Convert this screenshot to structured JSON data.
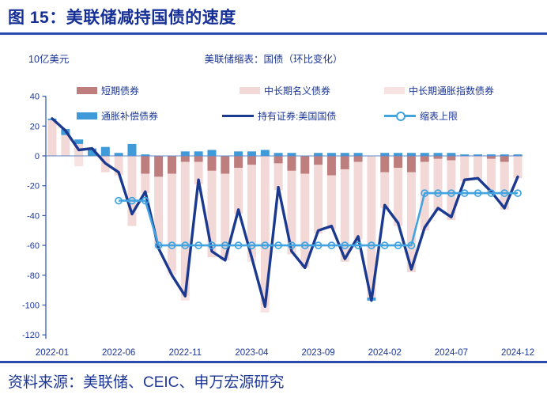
{
  "header": {
    "title": "图 15：美联储减持国债的速度"
  },
  "footer": {
    "source": "资料来源：美联储、CEIC、申万宏源研究"
  },
  "chart": {
    "unit_label": "10亿美元",
    "title": "美联储缩表：国债（环比变化）",
    "colors": {
      "short_term": "#bf7e7e",
      "nominal": "#f2d9d7",
      "inflation_indexed": "#f7e4e2",
      "inflation_comp": "#3e9ad8",
      "holdings_line": "#1b3a8f",
      "cap_line": "#41a3e0",
      "axis_text": "#1d3796",
      "zero_line": "#6189c6",
      "axis_line": "#3a5fb0"
    },
    "legend": {
      "items": [
        {
          "key": "short_term",
          "swatch": "bar",
          "label": "短期债券"
        },
        {
          "key": "nominal",
          "swatch": "bar",
          "label": "中长期名义债券"
        },
        {
          "key": "inflation_indexed",
          "swatch": "bar",
          "label": "中长期通胀指数债券"
        },
        {
          "key": "inflation_comp",
          "swatch": "bar",
          "label": "通胀补偿债券"
        },
        {
          "key": "holdings_line",
          "swatch": "line",
          "label": "持有证券:美国国债"
        },
        {
          "key": "cap_line",
          "swatch": "line-marker",
          "label": "缩表上限"
        }
      ]
    }
  },
  "chart_data": {
    "type": "bar+line",
    "title": "美联储缩表：国债（环比变化）",
    "unit": "10亿美元",
    "categories": [
      "2022-01",
      "2022-02",
      "2022-03",
      "2022-04",
      "2022-05",
      "2022-06",
      "2022-07",
      "2022-08",
      "2022-09",
      "2022-10",
      "2022-11",
      "2022-12",
      "2023-01",
      "2023-02",
      "2023-03",
      "2023-04",
      "2023-05",
      "2023-06",
      "2023-07",
      "2023-08",
      "2023-09",
      "2023-10",
      "2023-11",
      "2023-12",
      "2024-01",
      "2024-02",
      "2024-03",
      "2024-04",
      "2024-05",
      "2024-06",
      "2024-07",
      "2024-08",
      "2024-09",
      "2024-10",
      "2024-11",
      "2024-12"
    ],
    "bar_series": [
      {
        "name": "短期债券",
        "color_key": "short_term",
        "values": [
          0,
          0,
          0,
          0,
          0,
          0,
          0,
          -12,
          -14,
          -12,
          -4,
          -4,
          -10,
          -12,
          -8,
          -6,
          0,
          -5,
          -10,
          -12,
          -6,
          -13,
          -9,
          -4,
          0,
          -11,
          -8,
          -11,
          -4,
          -2,
          -3,
          0,
          0,
          -2,
          -4,
          0
        ]
      },
      {
        "name": "中长期名义债券",
        "color_key": "nominal",
        "values": [
          24,
          14,
          8,
          0,
          -11,
          -13,
          -47,
          -13,
          -45,
          -65,
          -90,
          -15,
          -58,
          -58,
          -31,
          -62,
          -100,
          -18,
          -56,
          -63,
          -46,
          -36,
          -62,
          -52,
          -95,
          -24,
          -39,
          -67,
          -46,
          -35,
          -40,
          -17,
          -16,
          -23,
          -32,
          -15
        ]
      },
      {
        "name": "中长期通胀指数债券",
        "color_key": "inflation_indexed",
        "values": [
          0,
          0,
          -7,
          0,
          0,
          0,
          0,
          0,
          -3,
          -3,
          -3,
          0,
          0,
          0,
          0,
          -3,
          -5,
          0,
          0,
          0,
          0,
          0,
          0,
          0,
          0,
          0,
          0,
          0,
          0,
          0,
          0,
          0,
          0,
          0,
          0,
          0
        ]
      },
      {
        "name": "通胀补偿债券",
        "color_key": "inflation_comp",
        "values": [
          1,
          4,
          3,
          5,
          6,
          2,
          8,
          1,
          0,
          0,
          3,
          3,
          4,
          0,
          3,
          3,
          4,
          2,
          2,
          0,
          2,
          2,
          2,
          2,
          -2,
          2,
          2,
          2,
          2,
          2,
          2,
          1,
          1,
          1,
          1,
          1
        ]
      }
    ],
    "line_series": [
      {
        "name": "持有证券:美国国债",
        "color_key": "holdings_line",
        "values": [
          25,
          17,
          4,
          5,
          -5,
          -11,
          -39,
          -24,
          -62,
          -80,
          -94,
          -16,
          -64,
          -70,
          -36,
          -68,
          -101,
          -21,
          -64,
          -75,
          -50,
          -47,
          -69,
          -54,
          -97,
          -33,
          -45,
          -76,
          -48,
          -35,
          -41,
          -16,
          -15,
          -24,
          -35,
          -14
        ]
      },
      {
        "name": "缩表上限",
        "color_key": "cap_line",
        "marker": "circle",
        "values": [
          null,
          null,
          null,
          null,
          null,
          -30,
          -30,
          -30,
          -60,
          -60,
          -60,
          -60,
          -60,
          -60,
          -60,
          -60,
          -60,
          -60,
          -60,
          -60,
          -60,
          -60,
          -60,
          -60,
          -60,
          -60,
          -60,
          -60,
          -25,
          -25,
          -25,
          -25,
          -25,
          -25,
          -25,
          -25
        ]
      }
    ],
    "ylim": [
      -120,
      40
    ],
    "y_ticks": [
      40,
      20,
      0,
      -20,
      -40,
      -60,
      -80,
      -100,
      -120
    ],
    "x_tick_labels": [
      "2022-01",
      "2022-06",
      "2022-11",
      "2023-04",
      "2023-09",
      "2024-02",
      "2024-07",
      "2024-12"
    ],
    "grid": false,
    "legend_position": "top"
  }
}
